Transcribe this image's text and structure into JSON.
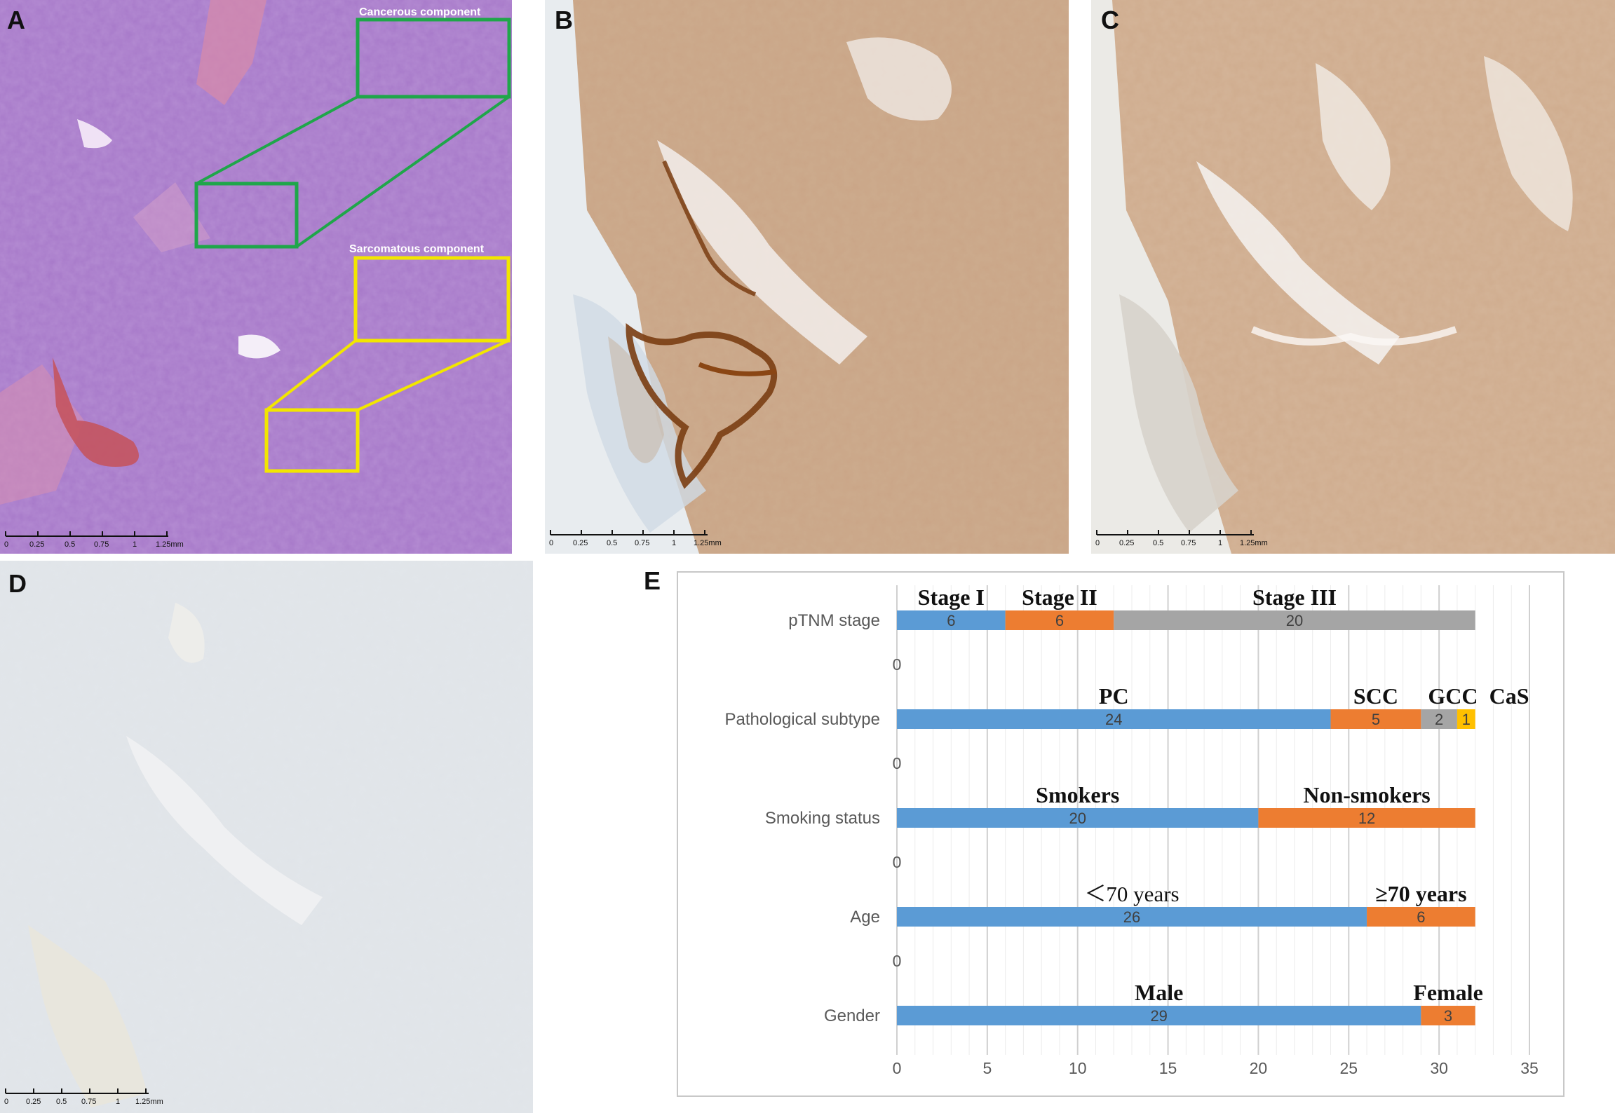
{
  "panels": {
    "A": {
      "letter": "A",
      "callouts": [
        "Cancerous component",
        "Sarcomatous component"
      ],
      "box_colors": {
        "cancerous": "#1fa64a",
        "sarcomatous": "#f2e600"
      }
    },
    "B": {
      "letter": "B"
    },
    "C": {
      "letter": "C"
    },
    "D": {
      "letter": "D"
    },
    "E": {
      "letter": "E"
    }
  },
  "scalebar": {
    "ticks": [
      "0",
      "0.25",
      "0.5",
      "0.75",
      "1",
      "1.25mm"
    ]
  },
  "chart_data": {
    "type": "bar",
    "orientation": "horizontal",
    "stacked": true,
    "categories": [
      "pTNM stage",
      "Pathological subtype",
      "Smoking status",
      "Age",
      "Gender"
    ],
    "segments": {
      "pTNM stage": [
        {
          "label": "Stage I",
          "value": 6,
          "color": "#5b9bd5"
        },
        {
          "label": "Stage II",
          "value": 6,
          "color": "#ed7d31"
        },
        {
          "label": "Stage III",
          "value": 20,
          "color": "#a5a5a5"
        }
      ],
      "Pathological subtype": [
        {
          "label": "PC",
          "value": 24,
          "color": "#5b9bd5"
        },
        {
          "label": "SCC",
          "value": 5,
          "color": "#ed7d31"
        },
        {
          "label": "GCC",
          "value": 2,
          "color": "#a5a5a5"
        },
        {
          "label": "CaS",
          "value": 1,
          "color": "#ffc000"
        }
      ],
      "Smoking status": [
        {
          "label": "Smokers",
          "value": 20,
          "color": "#5b9bd5"
        },
        {
          "label": "Non-smokers",
          "value": 12,
          "color": "#ed7d31"
        }
      ],
      "Age": [
        {
          "label": "＜70 years",
          "value": 26,
          "color": "#5b9bd5"
        },
        {
          "label": "≥70 years",
          "value": 6,
          "color": "#ed7d31"
        }
      ],
      "Gender": [
        {
          "label": "Male",
          "value": 29,
          "color": "#5b9bd5"
        },
        {
          "label": "Female",
          "value": 3,
          "color": "#ed7d31"
        }
      ]
    },
    "spacer_labels": [
      "0",
      "0",
      "0",
      "0"
    ],
    "xlim": [
      0,
      35
    ],
    "xticks": [
      0,
      5,
      10,
      15,
      20,
      25,
      30,
      35
    ],
    "grid": true,
    "legend": "none"
  }
}
